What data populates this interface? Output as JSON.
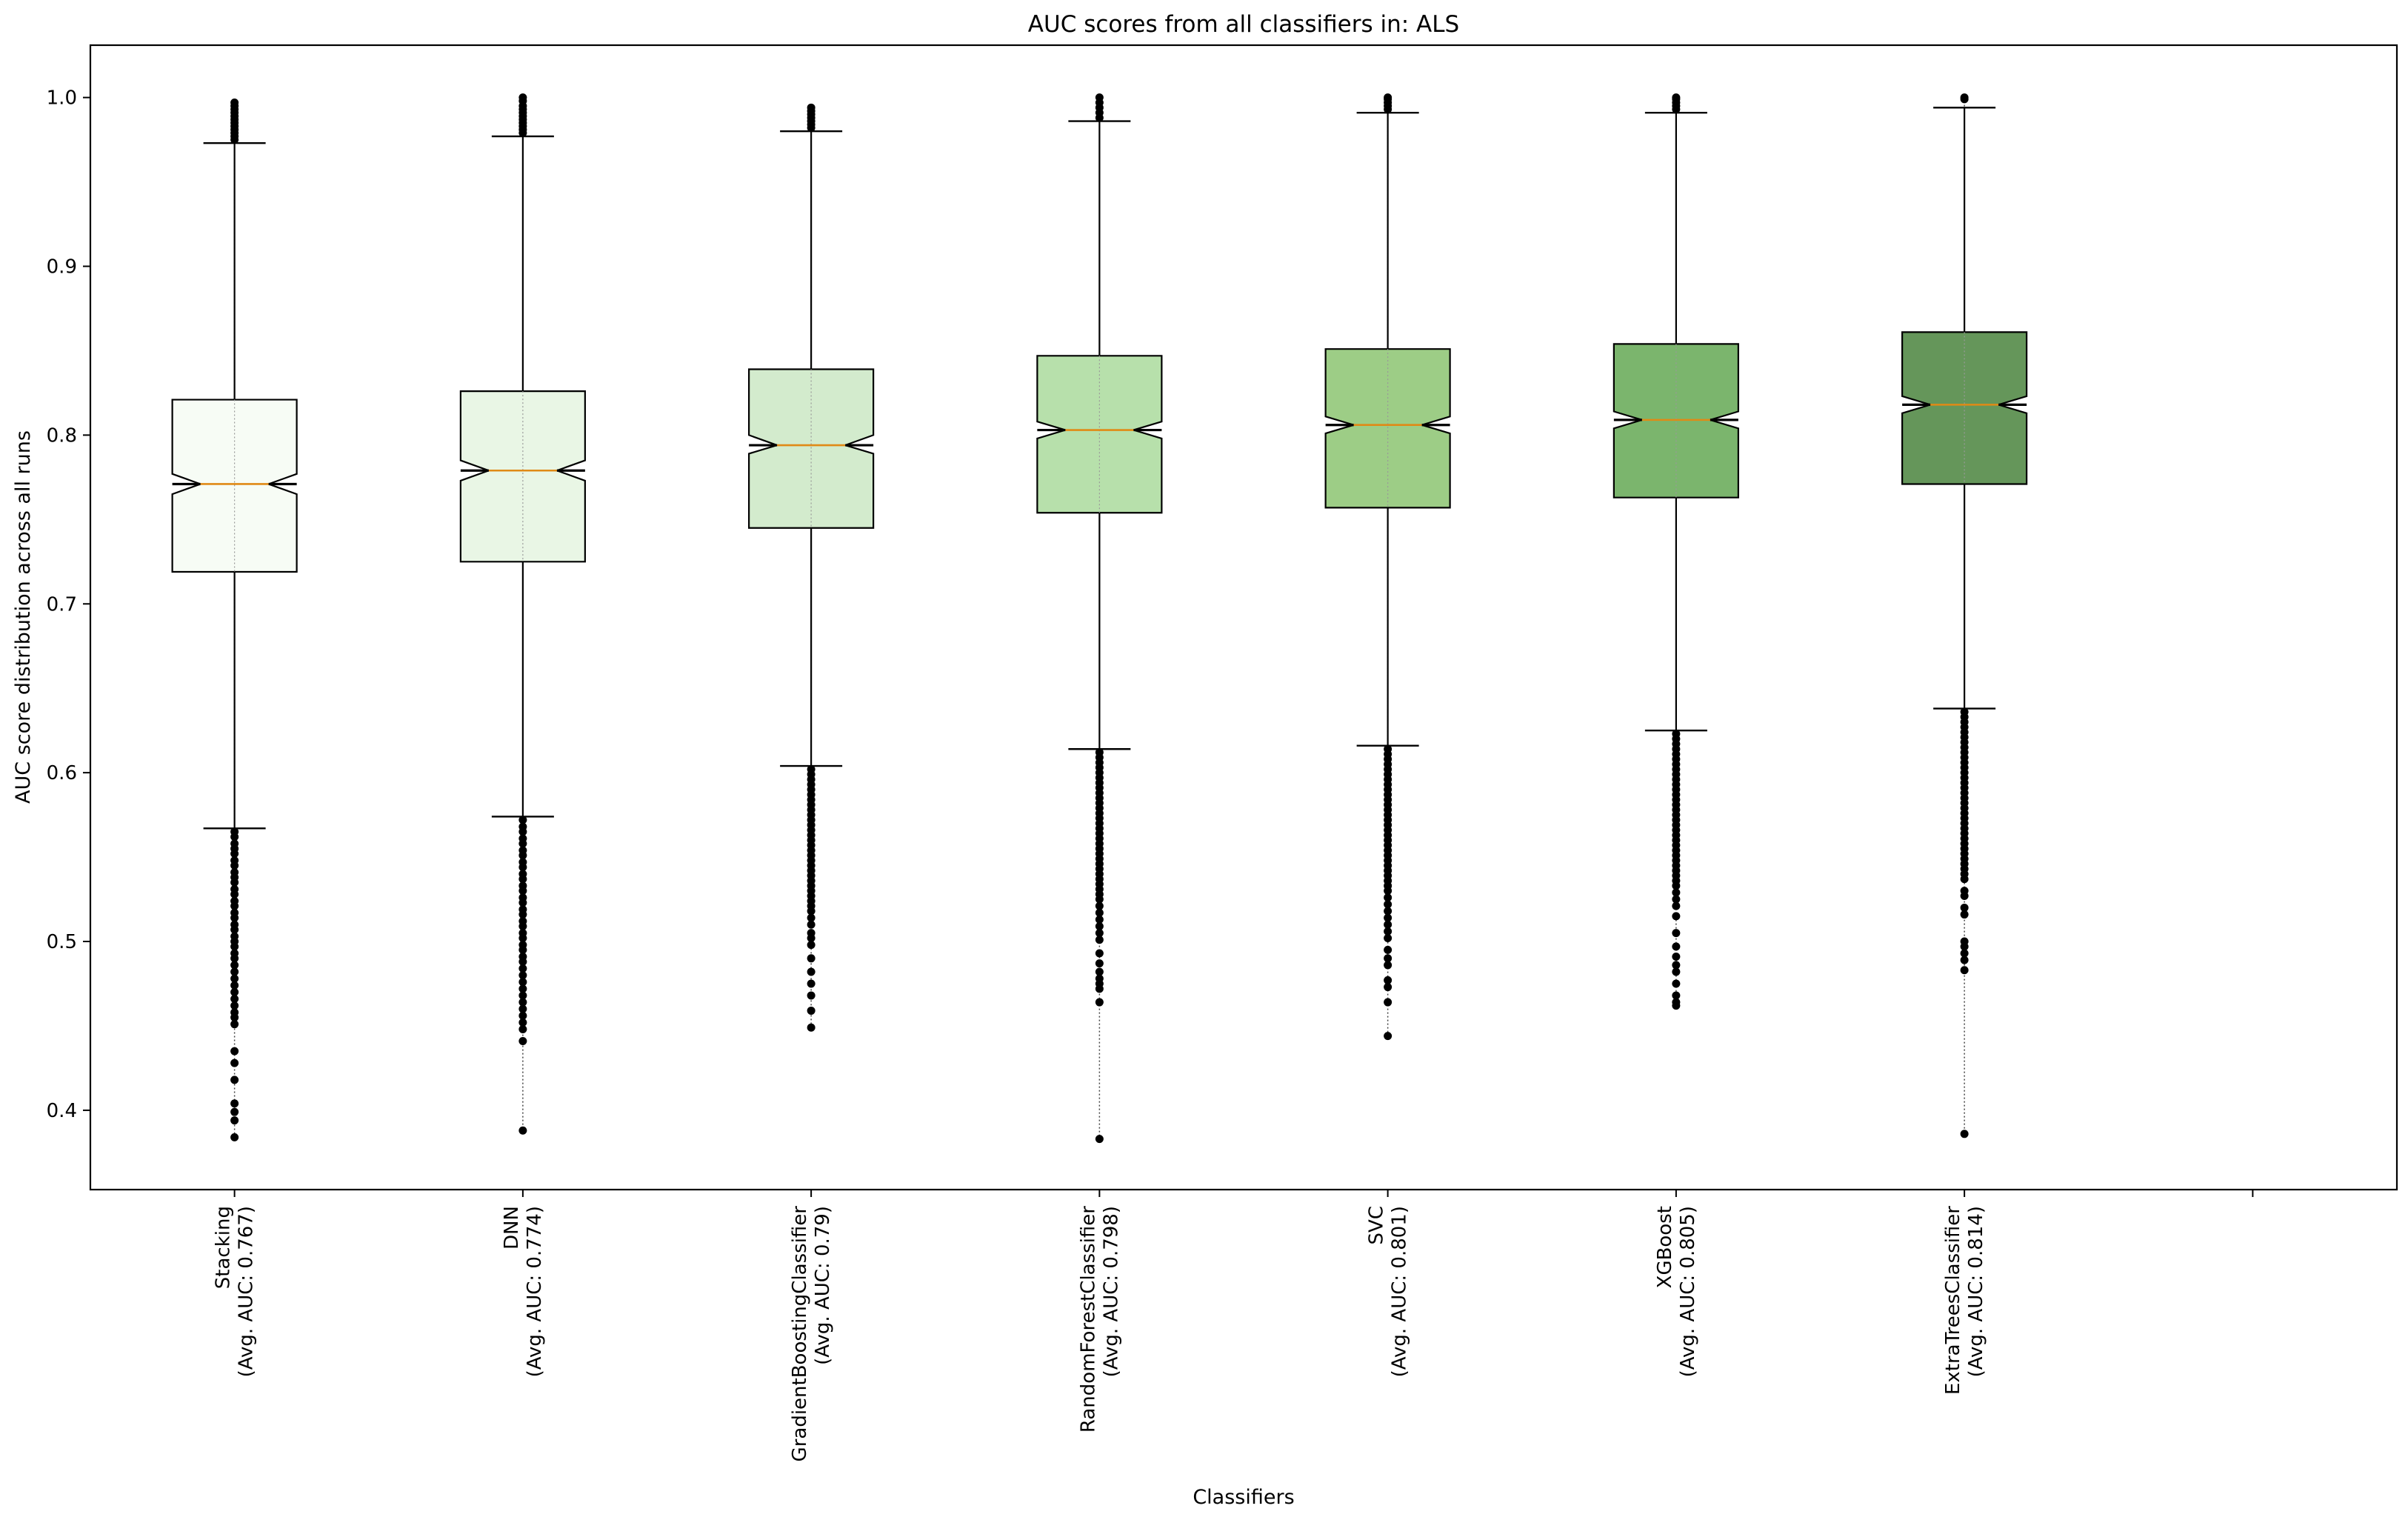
{
  "chart_data": {
    "type": "boxplot",
    "title": "AUC scores from all classifiers in: ALS",
    "xlabel": "Classifiers",
    "ylabel": "AUC score distribution across all runs",
    "ylim": [
      0.353,
      1.031
    ],
    "yticks": [
      0.4,
      0.5,
      0.6,
      0.7,
      0.8,
      0.9,
      1.0
    ],
    "ytick_labels": [
      "0.4",
      "0.5",
      "0.6",
      "0.7",
      "0.8",
      "0.9",
      "1.0"
    ],
    "xlim": [
      0.5,
      8.5
    ],
    "notched": true,
    "series": [
      {
        "name": "Stacking",
        "label_lines": [
          "Stacking",
          "(Avg. AUC: 0.767)"
        ],
        "color": "#f7fcf5",
        "q1": 0.719,
        "median": 0.771,
        "q3": 0.821,
        "whisker_low": 0.567,
        "whisker_high": 0.973,
        "notch": [
          0.765,
          0.777
        ],
        "outliers_low": [
          0.565,
          0.562,
          0.558,
          0.555,
          0.552,
          0.548,
          0.545,
          0.541,
          0.538,
          0.535,
          0.531,
          0.528,
          0.524,
          0.521,
          0.517,
          0.514,
          0.51,
          0.507,
          0.503,
          0.5,
          0.497,
          0.493,
          0.49,
          0.486,
          0.482,
          0.478,
          0.474,
          0.47,
          0.466,
          0.462,
          0.458,
          0.455,
          0.451,
          0.435,
          0.428,
          0.418,
          0.404,
          0.399,
          0.394,
          0.384
        ],
        "outliers_high": [
          0.975,
          0.977,
          0.979,
          0.981,
          0.983,
          0.985,
          0.987,
          0.989,
          0.991,
          0.993,
          0.995,
          0.997
        ]
      },
      {
        "name": "DNN",
        "label_lines": [
          "DNN",
          "(Avg. AUC: 0.774)"
        ],
        "color": "#e9f6e5",
        "q1": 0.725,
        "median": 0.779,
        "q3": 0.826,
        "whisker_low": 0.574,
        "whisker_high": 0.977,
        "notch": [
          0.773,
          0.785
        ],
        "outliers_low": [
          0.572,
          0.568,
          0.565,
          0.561,
          0.558,
          0.554,
          0.551,
          0.547,
          0.544,
          0.54,
          0.537,
          0.533,
          0.53,
          0.526,
          0.523,
          0.519,
          0.516,
          0.512,
          0.509,
          0.505,
          0.502,
          0.498,
          0.495,
          0.491,
          0.488,
          0.484,
          0.48,
          0.476,
          0.472,
          0.468,
          0.464,
          0.46,
          0.456,
          0.452,
          0.448,
          0.441,
          0.388
        ],
        "outliers_high": [
          0.979,
          0.981,
          0.983,
          0.985,
          0.987,
          0.989,
          0.991,
          0.993,
          0.995,
          0.998,
          1.0
        ]
      },
      {
        "name": "GradientBoostingClassifier",
        "label_lines": [
          "GradientBoostingClassifier",
          "(Avg. AUC: 0.79)"
        ],
        "color": "#d3ebcd",
        "q1": 0.745,
        "median": 0.794,
        "q3": 0.839,
        "whisker_low": 0.604,
        "whisker_high": 0.98,
        "notch": [
          0.789,
          0.8
        ],
        "outliers_low": [
          0.602,
          0.599,
          0.596,
          0.593,
          0.59,
          0.587,
          0.584,
          0.581,
          0.578,
          0.575,
          0.572,
          0.569,
          0.566,
          0.563,
          0.56,
          0.557,
          0.554,
          0.551,
          0.548,
          0.545,
          0.542,
          0.539,
          0.536,
          0.533,
          0.53,
          0.527,
          0.524,
          0.521,
          0.518,
          0.514,
          0.51,
          0.505,
          0.502,
          0.498,
          0.49,
          0.482,
          0.475,
          0.468,
          0.459,
          0.449
        ],
        "outliers_high": [
          0.982,
          0.984,
          0.986,
          0.988,
          0.99,
          0.992,
          0.994
        ]
      },
      {
        "name": "RandomForestClassifier",
        "label_lines": [
          "RandomForestClassifier",
          "(Avg. AUC: 0.798)"
        ],
        "color": "#b7e0ab",
        "q1": 0.754,
        "median": 0.803,
        "q3": 0.847,
        "whisker_low": 0.614,
        "whisker_high": 0.986,
        "notch": [
          0.798,
          0.808
        ],
        "outliers_low": [
          0.612,
          0.609,
          0.606,
          0.603,
          0.6,
          0.597,
          0.594,
          0.591,
          0.588,
          0.585,
          0.582,
          0.579,
          0.576,
          0.573,
          0.57,
          0.567,
          0.564,
          0.561,
          0.558,
          0.555,
          0.552,
          0.549,
          0.546,
          0.543,
          0.54,
          0.537,
          0.534,
          0.531,
          0.528,
          0.525,
          0.521,
          0.517,
          0.513,
          0.509,
          0.505,
          0.501,
          0.493,
          0.487,
          0.482,
          0.478,
          0.475,
          0.472,
          0.464,
          0.383
        ],
        "outliers_high": [
          0.988,
          0.991,
          0.994,
          0.997,
          1.0
        ]
      },
      {
        "name": "SVC",
        "label_lines": [
          "SVC",
          "(Avg. AUC: 0.801)"
        ],
        "color": "#9dcd86",
        "q1": 0.757,
        "median": 0.806,
        "q3": 0.851,
        "whisker_low": 0.616,
        "whisker_high": 0.991,
        "notch": [
          0.801,
          0.811
        ],
        "outliers_low": [
          0.614,
          0.611,
          0.608,
          0.605,
          0.602,
          0.599,
          0.596,
          0.593,
          0.59,
          0.587,
          0.584,
          0.581,
          0.578,
          0.575,
          0.572,
          0.569,
          0.566,
          0.563,
          0.56,
          0.557,
          0.554,
          0.551,
          0.548,
          0.545,
          0.542,
          0.539,
          0.536,
          0.533,
          0.53,
          0.526,
          0.522,
          0.518,
          0.514,
          0.51,
          0.506,
          0.502,
          0.495,
          0.49,
          0.486,
          0.477,
          0.473,
          0.464,
          0.444
        ],
        "outliers_high": [
          0.993,
          0.995,
          0.997,
          0.999,
          1.0
        ]
      },
      {
        "name": "XGBoost",
        "label_lines": [
          "XGBoost",
          "(Avg. AUC: 0.805)"
        ],
        "color": "#7bb56d",
        "q1": 0.763,
        "median": 0.809,
        "q3": 0.854,
        "whisker_low": 0.625,
        "whisker_high": 0.991,
        "notch": [
          0.804,
          0.814
        ],
        "outliers_low": [
          0.623,
          0.62,
          0.617,
          0.614,
          0.611,
          0.608,
          0.605,
          0.602,
          0.599,
          0.596,
          0.593,
          0.59,
          0.587,
          0.584,
          0.581,
          0.578,
          0.575,
          0.572,
          0.569,
          0.566,
          0.563,
          0.56,
          0.557,
          0.554,
          0.551,
          0.548,
          0.545,
          0.542,
          0.539,
          0.536,
          0.533,
          0.529,
          0.525,
          0.521,
          0.515,
          0.505,
          0.497,
          0.491,
          0.486,
          0.482,
          0.475,
          0.468,
          0.464,
          0.462
        ],
        "outliers_high": [
          0.993,
          0.995,
          0.997,
          0.999,
          1.0
        ]
      },
      {
        "name": "ExtraTreesClassifier",
        "label_lines": [
          "ExtraTreesClassifier",
          "(Avg. AUC: 0.814)"
        ],
        "color": "#65965a",
        "q1": 0.771,
        "median": 0.818,
        "q3": 0.861,
        "whisker_low": 0.638,
        "whisker_high": 0.994,
        "notch": [
          0.813,
          0.823
        ],
        "outliers_low": [
          0.636,
          0.633,
          0.63,
          0.627,
          0.624,
          0.621,
          0.618,
          0.615,
          0.612,
          0.609,
          0.606,
          0.603,
          0.6,
          0.597,
          0.594,
          0.591,
          0.588,
          0.585,
          0.582,
          0.579,
          0.576,
          0.573,
          0.57,
          0.567,
          0.564,
          0.561,
          0.558,
          0.555,
          0.552,
          0.549,
          0.546,
          0.543,
          0.54,
          0.537,
          0.53,
          0.527,
          0.52,
          0.516,
          0.5,
          0.497,
          0.493,
          0.489,
          0.483,
          0.386
        ],
        "outliers_high": [
          0.999,
          1.0
        ]
      }
    ]
  }
}
